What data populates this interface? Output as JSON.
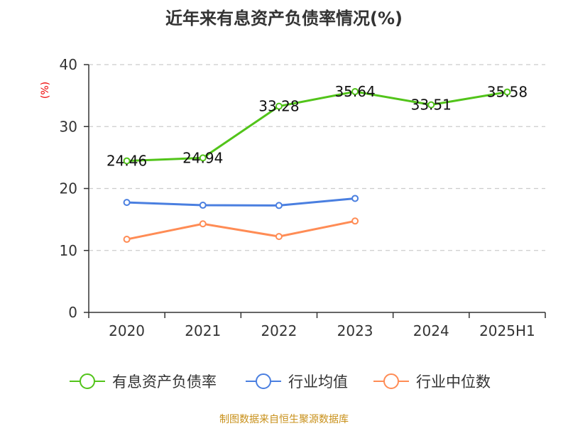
{
  "chart_data": {
    "type": "line",
    "title": "近年来有息资产负债率情况(%)",
    "ylabel": "(%)",
    "xlabel": "",
    "categories": [
      "2020",
      "2021",
      "2022",
      "2023",
      "2024",
      "2025H1"
    ],
    "ylim": [
      0,
      40
    ],
    "yticks": [
      0,
      10,
      20,
      30,
      40
    ],
    "grid": true,
    "legend_position": "bottom",
    "series": [
      {
        "name": "有息资产负债率",
        "color": "#52c41a",
        "values": [
          24.46,
          24.94,
          33.28,
          35.64,
          33.51,
          35.58
        ],
        "labels": [
          "24.46",
          "24.94",
          "33.28",
          "35.64",
          "33.51",
          "35.58"
        ]
      },
      {
        "name": "行业均值",
        "color": "#4a7fe0",
        "values": [
          17.75,
          17.3,
          17.26,
          18.4,
          null,
          null
        ]
      },
      {
        "name": "行业中位数",
        "color": "#ff8c55",
        "values": [
          11.8,
          14.3,
          12.25,
          14.75,
          null,
          null
        ]
      }
    ]
  },
  "footer": {
    "source": "制图数据来自恒生聚源数据库",
    "source_color": "#c8901a"
  }
}
